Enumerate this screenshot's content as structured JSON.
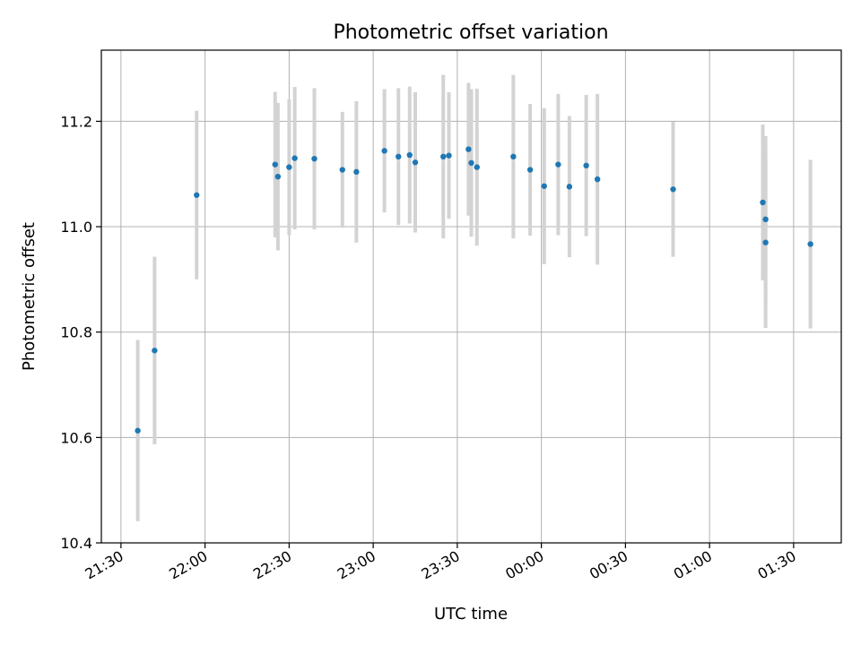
{
  "chart_data": {
    "type": "scatter",
    "title": "Photometric offset variation",
    "xlabel": "UTC time",
    "ylabel": "Photometric offset",
    "xlim": [
      "21:23",
      "01:47"
    ],
    "ylim": [
      10.4,
      11.335
    ],
    "grid": true,
    "xticks": [
      "21:30",
      "22:00",
      "22:30",
      "23:00",
      "23:30",
      "00:00",
      "00:30",
      "01:00",
      "01:30"
    ],
    "yticks": [
      10.4,
      10.6,
      10.8,
      11.0,
      11.2
    ],
    "point_color": "#1f77b4",
    "errorbar_color": "#d3d3d3",
    "points": [
      {
        "x": "21:36",
        "y": 10.613,
        "yerr": 0.172
      },
      {
        "x": "21:42",
        "y": 10.765,
        "yerr": 0.178
      },
      {
        "x": "21:57",
        "y": 11.06,
        "yerr": 0.16
      },
      {
        "x": "22:25",
        "y": 11.118,
        "yerr": 0.138
      },
      {
        "x": "22:26",
        "y": 11.095,
        "yerr": 0.14
      },
      {
        "x": "22:30",
        "y": 11.113,
        "yerr": 0.129
      },
      {
        "x": "22:32",
        "y": 11.13,
        "yerr": 0.135
      },
      {
        "x": "22:39",
        "y": 11.129,
        "yerr": 0.134
      },
      {
        "x": "22:49",
        "y": 11.108,
        "yerr": 0.11
      },
      {
        "x": "22:54",
        "y": 11.104,
        "yerr": 0.134
      },
      {
        "x": "23:04",
        "y": 11.144,
        "yerr": 0.117
      },
      {
        "x": "23:09",
        "y": 11.133,
        "yerr": 0.13
      },
      {
        "x": "23:13",
        "y": 11.136,
        "yerr": 0.13
      },
      {
        "x": "23:15",
        "y": 11.122,
        "yerr": 0.133
      },
      {
        "x": "23:25",
        "y": 11.133,
        "yerr": 0.155
      },
      {
        "x": "23:27",
        "y": 11.135,
        "yerr": 0.12
      },
      {
        "x": "23:34",
        "y": 11.147,
        "yerr": 0.126
      },
      {
        "x": "23:35",
        "y": 11.121,
        "yerr": 0.14
      },
      {
        "x": "23:37",
        "y": 11.113,
        "yerr": 0.149
      },
      {
        "x": "23:50",
        "y": 11.133,
        "yerr": 0.155
      },
      {
        "x": "23:56",
        "y": 11.108,
        "yerr": 0.125
      },
      {
        "x": "00:01",
        "y": 11.077,
        "yerr": 0.148
      },
      {
        "x": "00:06",
        "y": 11.118,
        "yerr": 0.134
      },
      {
        "x": "00:10",
        "y": 11.076,
        "yerr": 0.134
      },
      {
        "x": "00:16",
        "y": 11.116,
        "yerr": 0.134
      },
      {
        "x": "00:20",
        "y": 11.09,
        "yerr": 0.162
      },
      {
        "x": "00:47",
        "y": 11.071,
        "yerr": 0.128
      },
      {
        "x": "01:19",
        "y": 11.046,
        "yerr": 0.148
      },
      {
        "x": "01:20",
        "y": 10.97,
        "yerr": 0.162
      },
      {
        "x": "01:20",
        "y": 11.014,
        "yerr": 0.158
      },
      {
        "x": "01:36",
        "y": 10.967,
        "yerr": 0.16
      }
    ]
  }
}
